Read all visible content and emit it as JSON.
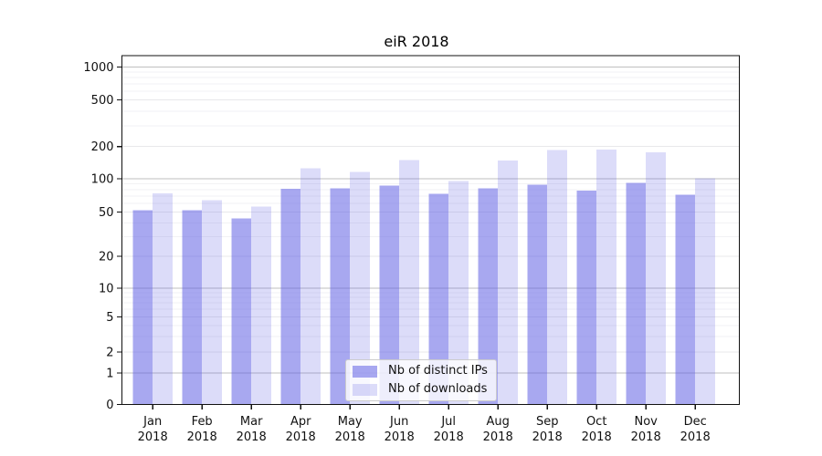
{
  "title": "eiR 2018",
  "chart_data": {
    "type": "bar",
    "title": "eiR 2018",
    "categories": [
      "Jan",
      "Feb",
      "Mar",
      "Apr",
      "May",
      "Jun",
      "Jul",
      "Aug",
      "Sep",
      "Oct",
      "Nov",
      "Dec"
    ],
    "category_sublabel": "2018",
    "yscale": "symlog",
    "yticks": [
      0,
      1,
      2,
      5,
      10,
      20,
      50,
      100,
      200,
      500,
      1000
    ],
    "ylim": [
      0,
      1300
    ],
    "grid": true,
    "legend_position": "lower-center",
    "series": [
      {
        "name": "Nb of distinct IPs",
        "color": "#5a5ae2",
        "opacity": 0.53,
        "values": [
          52,
          52,
          44,
          81,
          82,
          87,
          73,
          82,
          88,
          78,
          92,
          72
        ]
      },
      {
        "name": "Nb of downloads",
        "color": "#5a5ae2",
        "opacity": 0.21,
        "values": [
          74,
          64,
          56,
          125,
          116,
          150,
          95,
          148,
          185,
          188,
          177,
          101
        ]
      }
    ],
    "grid_colors": {
      "decade_line": "#bfbfbf",
      "major_line": "#e8e8eb",
      "minor_line": "#f2f2f4"
    }
  }
}
